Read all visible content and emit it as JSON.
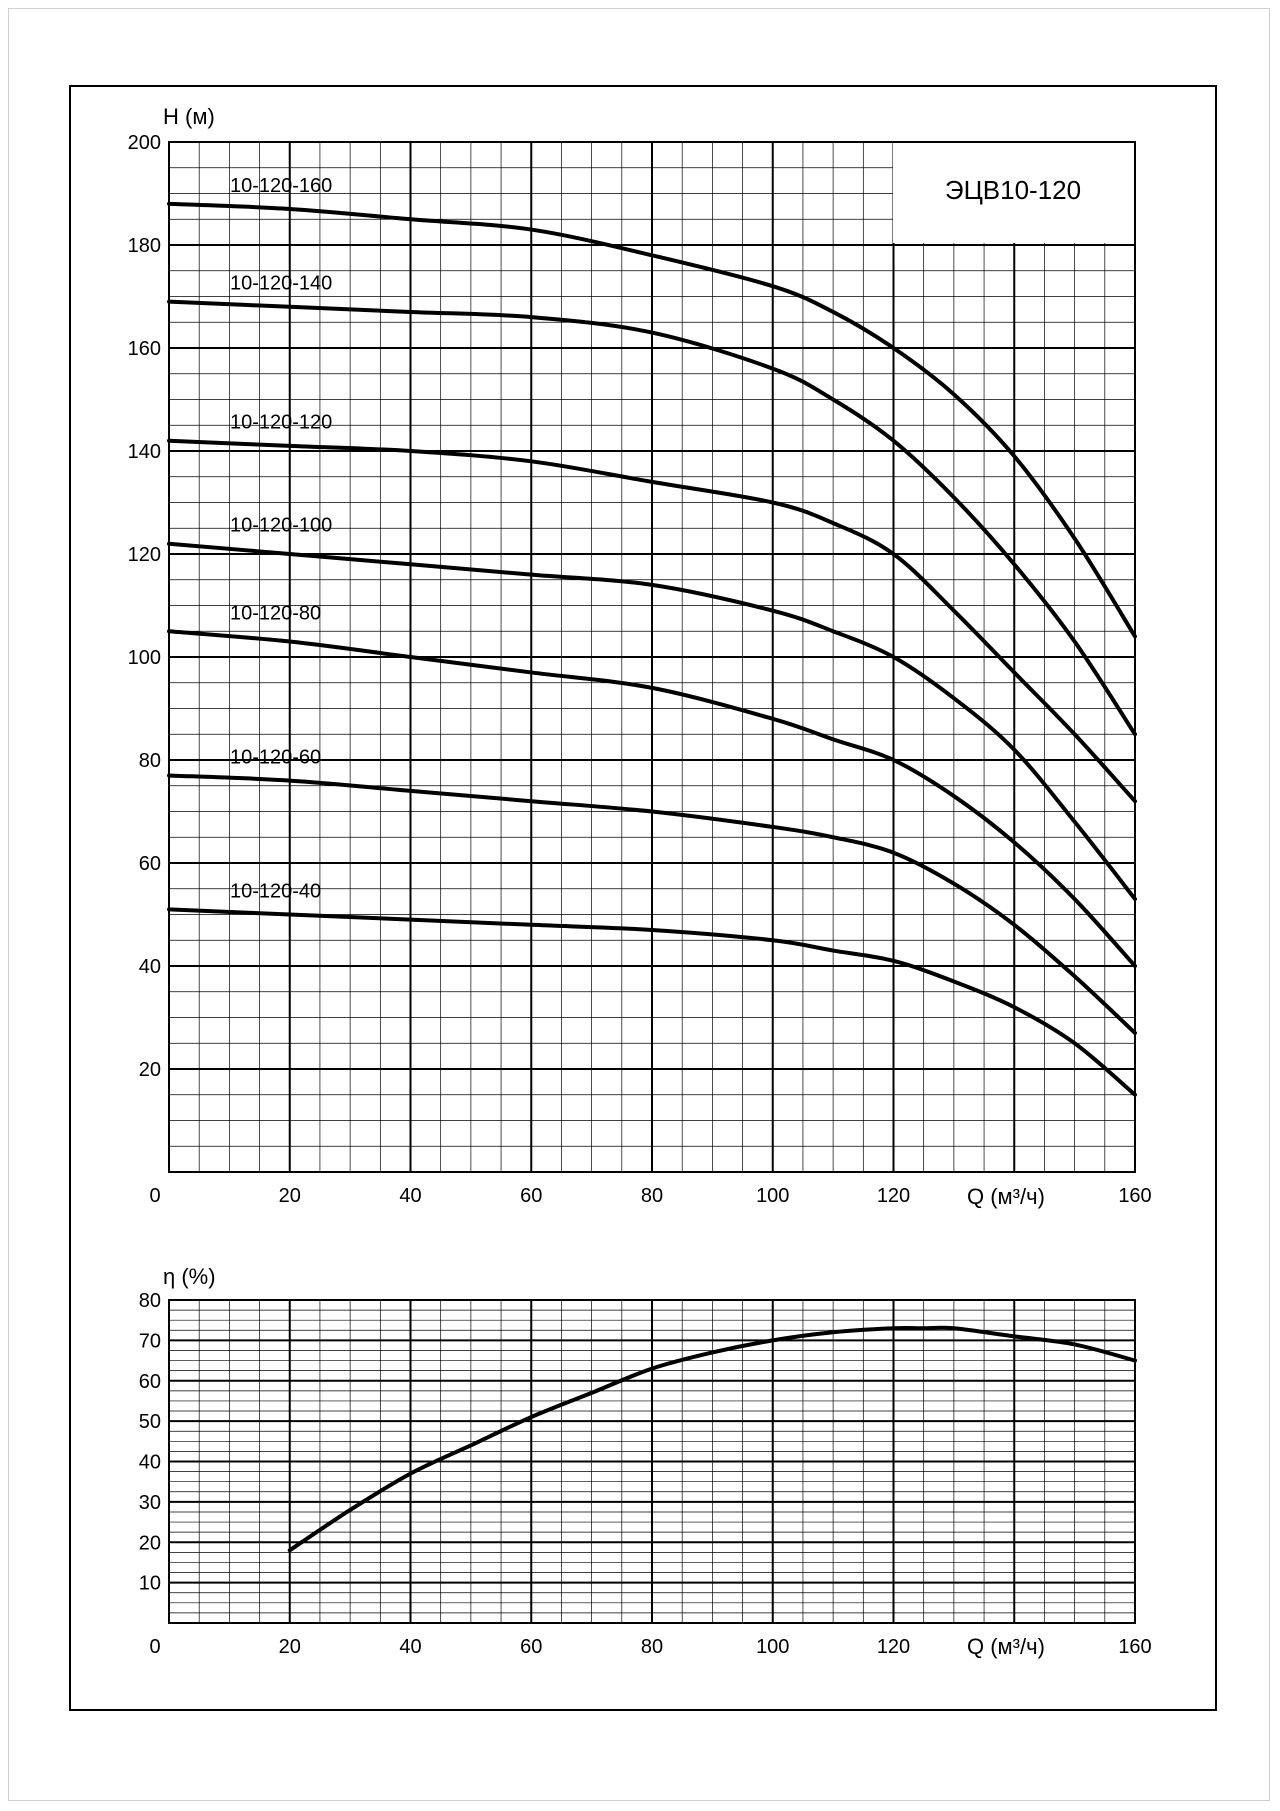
{
  "colors": {
    "line": "#000000",
    "grid": "#000000",
    "background": "#ffffff"
  },
  "chart_data": [
    {
      "type": "line",
      "title": "ЭЦВ10-120",
      "xlabel": "Q (м³/ч)",
      "ylabel": "H (м)",
      "xlim": [
        0,
        160
      ],
      "ylim": [
        0,
        200
      ],
      "x_ticks": [
        "0",
        "20",
        "40",
        "60",
        "80",
        "100",
        "120",
        "160"
      ],
      "y_ticks": [
        "20",
        "40",
        "60",
        "80",
        "100",
        "120",
        "140",
        "160",
        "180",
        "200"
      ],
      "grid": true,
      "legend": "labels above curves",
      "series": [
        {
          "name": "10-120-160",
          "x": [
            0,
            20,
            40,
            60,
            80,
            100,
            110,
            120,
            130,
            140,
            150,
            160
          ],
          "y": [
            188,
            187,
            185,
            183,
            178,
            172,
            167,
            160,
            151,
            139,
            123,
            104
          ]
        },
        {
          "name": "10-120-140",
          "x": [
            0,
            20,
            40,
            60,
            80,
            100,
            110,
            120,
            130,
            140,
            150,
            160
          ],
          "y": [
            169,
            168,
            167,
            166,
            163,
            156,
            150,
            142,
            131,
            118,
            103,
            85
          ]
        },
        {
          "name": "10-120-120",
          "x": [
            0,
            20,
            40,
            60,
            80,
            100,
            110,
            120,
            130,
            140,
            150,
            160
          ],
          "y": [
            142,
            141,
            140,
            138,
            134,
            130,
            126,
            120,
            109,
            97,
            85,
            72
          ]
        },
        {
          "name": "10-120-100",
          "x": [
            0,
            20,
            40,
            60,
            80,
            100,
            110,
            120,
            130,
            140,
            150,
            160
          ],
          "y": [
            122,
            120,
            118,
            116,
            114,
            109,
            105,
            100,
            92,
            82,
            68,
            53
          ]
        },
        {
          "name": "10-120-80",
          "x": [
            0,
            20,
            40,
            60,
            80,
            100,
            110,
            120,
            130,
            140,
            150,
            160
          ],
          "y": [
            105,
            103,
            100,
            97,
            94,
            88,
            84,
            80,
            73,
            64,
            53,
            40
          ]
        },
        {
          "name": "10-120-60",
          "x": [
            0,
            20,
            40,
            60,
            80,
            100,
            110,
            120,
            130,
            140,
            150,
            160
          ],
          "y": [
            77,
            76,
            74,
            72,
            70,
            67,
            65,
            62,
            56,
            48,
            38,
            27
          ]
        },
        {
          "name": "10-120-40",
          "x": [
            0,
            20,
            40,
            60,
            80,
            100,
            110,
            120,
            130,
            140,
            150,
            160
          ],
          "y": [
            51,
            50,
            49,
            48,
            47,
            45,
            43,
            41,
            37,
            32,
            25,
            15
          ]
        }
      ]
    },
    {
      "type": "line",
      "title": "",
      "xlabel": "Q (м³/ч)",
      "ylabel": "η (%)",
      "xlim": [
        0,
        160
      ],
      "ylim": [
        0,
        80
      ],
      "x_ticks": [
        "0",
        "20",
        "40",
        "60",
        "80",
        "100",
        "120",
        "160"
      ],
      "y_ticks": [
        "10",
        "20",
        "30",
        "40",
        "50",
        "60",
        "70",
        "80"
      ],
      "grid": true,
      "series": [
        {
          "x": [
            20,
            30,
            40,
            50,
            60,
            70,
            80,
            90,
            100,
            110,
            120,
            125,
            130,
            140,
            150,
            160
          ],
          "y": [
            18,
            28,
            37,
            44,
            51,
            57,
            63,
            67,
            70,
            72,
            73,
            73,
            73,
            71,
            69,
            65
          ]
        }
      ]
    }
  ]
}
